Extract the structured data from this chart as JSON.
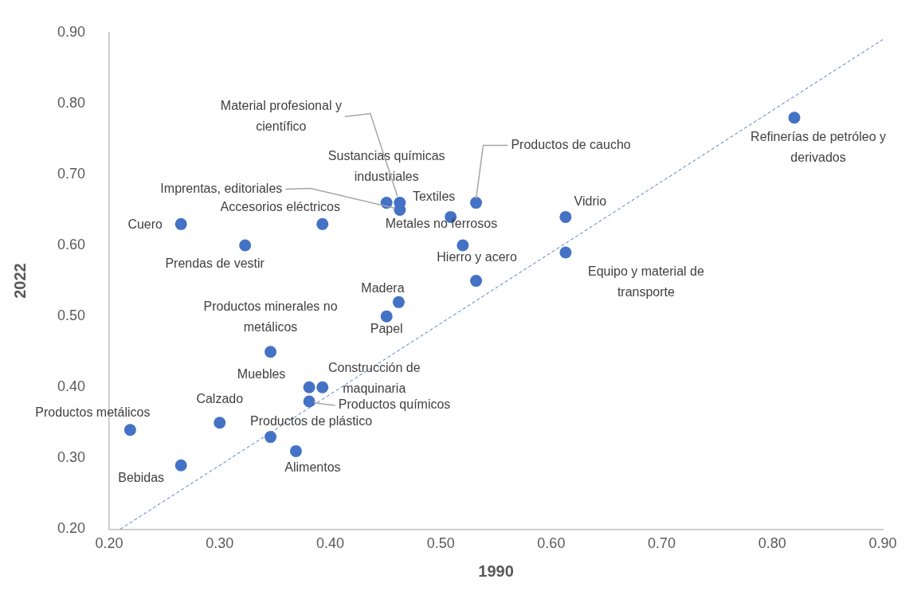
{
  "chart_data": {
    "type": "scatter",
    "xlabel": "1990",
    "ylabel": "2022",
    "xlim": [
      0.2,
      0.9
    ],
    "ylim": [
      0.2,
      0.9
    ],
    "xticks": [
      {
        "value": 0.2,
        "label": "0.20"
      },
      {
        "value": 0.3,
        "label": "0.30"
      },
      {
        "value": 0.4,
        "label": "0.40"
      },
      {
        "value": 0.5,
        "label": "0.50"
      },
      {
        "value": 0.6,
        "label": "0.60"
      },
      {
        "value": 0.7,
        "label": "0.70"
      },
      {
        "value": 0.8,
        "label": "0.80"
      },
      {
        "value": 0.9,
        "label": "0.90"
      }
    ],
    "yticks": [
      {
        "value": 0.2,
        "label": "0.20"
      },
      {
        "value": 0.3,
        "label": "0.30"
      },
      {
        "value": 0.4,
        "label": "0.40"
      },
      {
        "value": 0.5,
        "label": "0.50"
      },
      {
        "value": 0.6,
        "label": "0.60"
      },
      {
        "value": 0.7,
        "label": "0.70"
      },
      {
        "value": 0.8,
        "label": "0.80"
      },
      {
        "value": 0.9,
        "label": "0.90"
      }
    ],
    "grid": false,
    "legend": false,
    "marker": "circle",
    "series": [
      {
        "color": "#4472c4",
        "x": [
          0.219,
          0.265,
          0.3,
          0.265,
          0.323,
          0.346,
          0.369,
          0.346,
          0.381,
          0.393,
          0.381,
          0.393,
          0.451,
          0.463,
          0.463,
          0.509,
          0.52,
          0.532,
          0.532,
          0.462,
          0.451,
          0.613,
          0.613,
          0.82
        ],
        "values": [
          0.34,
          0.29,
          0.35,
          0.63,
          0.6,
          0.33,
          0.31,
          0.45,
          0.4,
          0.4,
          0.38,
          0.63,
          0.66,
          0.66,
          0.65,
          0.64,
          0.6,
          0.66,
          0.55,
          0.52,
          0.5,
          0.64,
          0.59,
          0.78
        ]
      },
      {
        "type": "line",
        "color": "#4472c4",
        "line_style": "dashed",
        "marker": "none",
        "x": [
          0.21,
          0.9
        ],
        "values": [
          0.2,
          0.89
        ]
      }
    ],
    "annotations": [
      {
        "text": "Productos metálicos",
        "x": 0.219,
        "y": 0.34
      },
      {
        "text": "Bebidas",
        "x": 0.265,
        "y": 0.29
      },
      {
        "text": "Calzado",
        "x": 0.3,
        "y": 0.35
      },
      {
        "text": "Cuero",
        "x": 0.265,
        "y": 0.63
      },
      {
        "text": "Prendas de vestir",
        "x": 0.323,
        "y": 0.6
      },
      {
        "text": "Productos de plástico",
        "x": 0.346,
        "y": 0.33
      },
      {
        "text": "Alimentos",
        "x": 0.369,
        "y": 0.31
      },
      {
        "text": "Productos minerales no metálicos",
        "x": 0.346,
        "y": 0.45
      },
      {
        "text": "Muebles",
        "x": 0.381,
        "y": 0.4
      },
      {
        "text": "Construcción de maquinaria",
        "x": 0.393,
        "y": 0.4
      },
      {
        "text": "Productos químicos",
        "x": 0.381,
        "y": 0.38
      },
      {
        "text": "Accesorios eléctricos",
        "x": 0.393,
        "y": 0.63
      },
      {
        "text": "Sustancias químicas industriales",
        "x": 0.451,
        "y": 0.66
      },
      {
        "text": "Material profesional y científico",
        "x": 0.463,
        "y": 0.66
      },
      {
        "text": "Imprentas, editoriales",
        "x": 0.463,
        "y": 0.65
      },
      {
        "text": "Textiles",
        "x": 0.509,
        "y": 0.64
      },
      {
        "text": "Metales no ferrosos",
        "x": 0.52,
        "y": 0.6
      },
      {
        "text": "Productos de caucho",
        "x": 0.532,
        "y": 0.66
      },
      {
        "text": "Hierro y acero",
        "x": 0.532,
        "y": 0.55
      },
      {
        "text": "Madera",
        "x": 0.462,
        "y": 0.52
      },
      {
        "text": "Papel",
        "x": 0.451,
        "y": 0.5
      },
      {
        "text": "Vidrio",
        "x": 0.613,
        "y": 0.64
      },
      {
        "text": "Equipo y material de transporte",
        "x": 0.613,
        "y": 0.59
      },
      {
        "text": "Refinerías de petróleo y derivados",
        "x": 0.82,
        "y": 0.78
      }
    ]
  }
}
